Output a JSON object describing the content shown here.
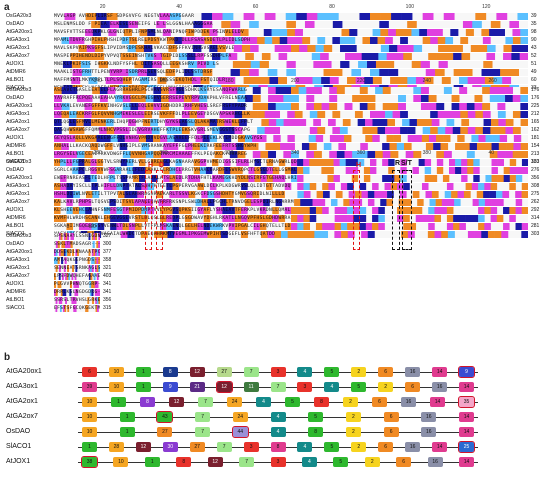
{
  "panel_a_label": "a",
  "panel_b_label": "b",
  "alignment": {
    "ruler_ticks": [
      [
        "20",
        "40",
        "60",
        "80",
        "100",
        "120"
      ],
      [
        "140",
        "160",
        "180",
        "200",
        "220",
        "240",
        "260"
      ],
      [
        "280",
        "300",
        "320",
        "340",
        "360",
        "380",
        "40"
      ],
      [
        "0",
        "420"
      ]
    ],
    "blocks": [
      {
        "names": [
          "OsGA20x3",
          "OsDAO",
          "AtGA20ox1",
          "AtGA3ox1",
          "AtGA2ox1",
          "AtGA2ox7",
          "AtJOX1",
          "AtDMR6",
          "AtLBO1",
          "SlACO1"
        ],
        "sequences": [
          "MVVLAGP AVHDIPLIRSF SDPGVVFG NEGTVLAAASPGGAAR",
          "MSLENMSLDD F PIEA ELKESLSENEIFG LE LSLGGNLHAAAGGGAA",
          "MAVSFVTTSEEEDKPKLGLGNIQTPLIFNPSMLNLQANIPNQFIWPDDEK PSINVLELDV",
          "MPAMLTDVFRGHPIHLPHSHIPDFTSLRELPDSYKWTPKD DLLFSASASDETLPLIDLSDPH",
          "MAVLSKPVAIPKSGFSLIPVIDMSDPESKHALVKACEDFGFFKVINHGVSAELVSVLE",
          "MASPEPPIHENDLDIPYVPVQTSSEINSHTVKS TGIPIDLSSSLLRPFSSDHPLFA",
          "MNEKLPKIFSIS IHGKKLNDFYSFHL DITSASQLLEEGKSHRV PIVD LS",
          "MAAKLISTGFRHTTLPENYVRP ISDRPRLSEVSQLEDFPLIDLSSTDRSF",
          "MAFFMSNTLMKYKPFLTLPLSQHEPTAGAMIRS DKESSEKQTHDL FSTQIDLR",
          "MENFPIINLEKLNGDERANTMEMIKDACENWGFFELVNHGIPHEVMDTVEK"
        ],
        "end_numbers": [
          "39",
          "35",
          "98",
          "90",
          "43",
          "52",
          "51",
          "49",
          "60",
          "33"
        ]
      },
      {
        "names": [
          "OsGA20x3",
          "OsDAO",
          "AtGA20ox1",
          "AtGA3ox1",
          "AtGA2ox1",
          "AtGA2ox7",
          "AtJOX1",
          "AtDMR6",
          "AtLBO1",
          "SlACO1"
        ],
        "sequences": [
          "ASLAVCTGASLEEATELFLAGRRAGHRLPSCHRVSVRSFVGLSDHKLKSRYESANQFWARLG",
          "YAVRAFFRCPQEAAAEAHAAYRKVGGCLPWEGHVGERRSEPEVYRPVDAKPHLVFRELNEAA",
          "LLVKALEVANEFGFFKVINHGVSLELLEQLEHVVIGDHDDRIRHFVHESLSREFRSFYPADR",
          "LQEQALEACKRFGLFQVVNHGMEKESLELEIRSEVKFFFDLPLEEVGEYDSGVAPSKRHGLLK",
          "QTLQGLESFMVLLMENKERLIHQPQGWPFNERTDHYGYKSEAGSLQLAKAMATRSWEKLLFPLT",
          "QASQHWSAWGFFQMMLNHCVPSSLIDEVGRVAHEFFKTPLEEKSKVGRLSMEVGGSTSSCAPG",
          "GEYQSLAQLLVKGAAEEWGFFQLVNHGVPNDVVDGVLASAHEEFFDLPEEEKLKYEMDDGKAVGYGS",
          "ANHALLLKACKQAQDWGFFLVNHGIPLEVMSRANKAYEFFFGLPHEEKIRKFEEFRTSSHGYWPH",
          "LRGYSELVGECEAIYRKVDWGFFLQVVNHGAPQQIMRCMIAAAEFFKLPEQAKCKYDHAREG",
          "VRSKGAMYKLCAEEVEQAAEQYFEFEDRDAKELCMVQAQTTLSGNEYSSLEHCFEPNMSVRG"
        ],
        "end_numbers": [
          "176",
          "176",
          "225",
          "212",
          "165",
          "162",
          "181",
          "154",
          "213",
          "133"
        ]
      },
      {
        "names": [
          "OsGA20x3",
          "OsDAO",
          "AtGA20ox1",
          "AtGA3ox1",
          "AtGA2ox1",
          "AtGA2ox7",
          "AtJOX1",
          "AtDMR6",
          "AtLBO1",
          "SlACO1"
        ],
        "sequences": [
          "YHPLLLFGPRALGLGGTVLSRWYAERLVLLGRREHGLKAGNAARAVGGPVHMEDIGSSIFLRLHYGCTLRNAGWRLQD",
          "SGRLCAAAPCLRGGVVWFSGARAALLFEDIAAKLGLRDHCLRRGTVHAACGARDFESWVRQPCTLGSGQTELLGSMAL",
          "EWEFRNREASFLTEDLHFPLTSSPAMRTFLAHALATSLAEDLRTDHAFHTLKAMEGKHDYDLNSIRFGTGEHAQLHRI",
          "ASHADAYISCLLTPLHIFLLDNPTATALSAHTHTEETLPGPERVGAAWLDCLKPLKDGWRVSLQLIDTGTTADVDQ",
          "HSHLDQIWLNVLETILTTPVTALGLAHWRDGHRAEKARLTSSVLKGKCFDSGSHDHTYGMVGSQRIDLNILLLD",
          "KALKAVLRPHPSLTQSVEPSDITSVLAPAKEQAVPRFRKSNPLSWLDHALLPGCHLTRNVDGELESPDIRLNGARRM",
          "KLSHEEVEHCLAHNFSNMFESGTPMIDPDRPTVVLYPGVSQPKSIIGYAFLYSHAEAVTFERKPLVKRDNLLQMAL",
          "KVMFHLWRDHSCANKLEHGEVGGEVRSTLDLQSLELREDPLGSGDWAVYDGHLRKATLLNGQVPFHSLGDHDWRRA",
          "SGKAAIIMGQESDSSYVENWLTDLSNPLLVTFPLMSKAENQLGELHELNDEKWRKVPVIPGALCILGHQTELLTLD",
          "WASYLQGEKNRLAEEVASAIALWKDCTDPAEQAHRKMTVEGMLIPKGEMWPIHTSDGEFLVSFHFTQATDD"
        ],
        "end_numbers": [
          "303",
          "276",
          "356",
          "308",
          "275",
          "262",
          "292",
          "314",
          "281",
          "303"
        ]
      },
      {
        "names": [
          "OsGA20x3",
          "OsDAO",
          "AtGA20ox1",
          "AtGA3ox1",
          "AtGA2ox1",
          "AtGA2ox7",
          "AtJOX1",
          "AtDMR6",
          "AtLBO1",
          "SlACO1"
        ],
        "sequences": [
          "SPSNAAYLSSNLGDN----- RGASFPK",
          "SSKLTMADSAGR----- EARALAS",
          "DDSEKDLKNAAATPC----- LGHVPLT",
          "AMTAQKGEPNGDS----- MHKVPEK",
          "SENNEATSRNKAGLS----- MDHKPDN",
          "LPSFDWQHEFAGAAE----- SAPKSPAS",
          "PLGVVPHNQTGGRP----- NGRQSE",
          "DRRLKSLNGDGDRG----- ZTANNCW",
          "SSRSLTRVHSLGRKE----- CPERIEEP",
          "EFSTSFGCQKGEKTM----- PERLIADGSS"
        ],
        "end_numbers": [
          "327",
          "300",
          "377",
          "358",
          "321",
          "403",
          "341",
          "341",
          "356",
          "315"
        ]
      }
    ],
    "motif_labels": [
      {
        "text": "H",
        "color": "#d11"
      },
      {
        "text": "D",
        "color": "#d11"
      },
      {
        "text": "H",
        "color": "#d11"
      },
      {
        "text": "R",
        "color": "#111"
      },
      {
        "text": "S/T",
        "color": "#111"
      }
    ]
  },
  "motifs": {
    "genes": [
      {
        "name": "AtGA20ox1",
        "boxes": [
          {
            "n": "6",
            "c": "#e8322b"
          },
          {
            "n": "10",
            "c": "#f5a623"
          },
          {
            "n": "1",
            "c": "#2eb82e"
          },
          {
            "n": "8",
            "c": "#1a3a8f"
          },
          {
            "n": "12",
            "c": "#7a1f2e"
          },
          {
            "n": "27",
            "c": "#b6d98c"
          },
          {
            "n": "7",
            "c": "#9be58a"
          },
          {
            "n": "3",
            "c": "#e8322b"
          },
          {
            "n": "4",
            "c": "#138a8a"
          },
          {
            "n": "5",
            "c": "#2eb82e"
          },
          {
            "n": "2",
            "c": "#f6d31f"
          },
          {
            "n": "6",
            "c": "#f08a24"
          },
          {
            "n": "16",
            "c": "#8a8fa8"
          },
          {
            "n": "14",
            "c": "#e03b8f"
          },
          {
            "n": "9",
            "c": "#3b4bd1",
            "hl": true
          }
        ]
      },
      {
        "name": "AtGA3ox1",
        "boxes": [
          {
            "n": "39",
            "c": "#e03b8f"
          },
          {
            "n": "10",
            "c": "#f5a623"
          },
          {
            "n": "1",
            "c": "#2eb82e"
          },
          {
            "n": "9",
            "c": "#3b4bd1"
          },
          {
            "n": "21",
            "c": "#5b2a86"
          },
          {
            "n": "12",
            "c": "#7a1f2e",
            "hl": true
          },
          {
            "n": "11",
            "c": "#3e7a3e"
          },
          {
            "n": "7",
            "c": "#9be58a"
          },
          {
            "n": "3",
            "c": "#e8322b"
          },
          {
            "n": "4",
            "c": "#138a8a"
          },
          {
            "n": "5",
            "c": "#2eb82e"
          },
          {
            "n": "2",
            "c": "#f6d31f"
          },
          {
            "n": "6",
            "c": "#f08a24"
          },
          {
            "n": "16",
            "c": "#8a8fa8"
          },
          {
            "n": "14",
            "c": "#e03b8f"
          }
        ]
      },
      {
        "name": "AtGA2ox1",
        "boxes": [
          {
            "n": "10",
            "c": "#f5a623"
          },
          {
            "n": "1",
            "c": "#2eb82e"
          },
          {
            "n": "8",
            "c": "#8a3bd1"
          },
          {
            "n": "12",
            "c": "#7a1f2e"
          },
          {
            "n": "7",
            "c": "#9be58a"
          },
          {
            "n": "24",
            "c": "#f5a623"
          },
          {
            "n": "4",
            "c": "#138a8a"
          },
          {
            "n": "5",
            "c": "#2eb82e"
          },
          {
            "n": "8",
            "c": "#e8322b"
          },
          {
            "n": "2",
            "c": "#f6d31f"
          },
          {
            "n": "6",
            "c": "#f08a24"
          },
          {
            "n": "16",
            "c": "#8a8fa8"
          },
          {
            "n": "14",
            "c": "#e03b8f"
          },
          {
            "n": "35",
            "c": "#f4a6c8",
            "hl": true
          }
        ]
      },
      {
        "name": "AtGA2ox7",
        "boxes": [
          {
            "n": "10",
            "c": "#f5a623"
          },
          {
            "n": "1",
            "c": "#2eb82e"
          },
          {
            "n": "43",
            "c": "#2eb82e",
            "hl": true
          },
          {
            "n": "7",
            "c": "#9be58a"
          },
          {
            "n": "24",
            "c": "#f5a623"
          },
          {
            "n": "4",
            "c": "#138a8a"
          },
          {
            "n": "5",
            "c": "#2eb82e"
          },
          {
            "n": "2",
            "c": "#f6d31f"
          },
          {
            "n": "6",
            "c": "#f08a24"
          },
          {
            "n": "16",
            "c": "#8a8fa8"
          },
          {
            "n": "14",
            "c": "#e03b8f"
          }
        ]
      },
      {
        "name": "OsDAO",
        "boxes": [
          {
            "n": "10",
            "c": "#f5a623"
          },
          {
            "n": "1",
            "c": "#2eb82e"
          },
          {
            "n": "27",
            "c": "#f08a24"
          },
          {
            "n": "7",
            "c": "#9be58a"
          },
          {
            "n": "44",
            "c": "#9a8fd8",
            "hl": true
          },
          {
            "n": "4",
            "c": "#138a8a"
          },
          {
            "n": "8",
            "c": "#2eb82e"
          },
          {
            "n": "2",
            "c": "#f6d31f"
          },
          {
            "n": "6",
            "c": "#f08a24"
          },
          {
            "n": "16",
            "c": "#8a8fa8"
          },
          {
            "n": "14",
            "c": "#e03b8f"
          }
        ]
      },
      {
        "name": "SlACO1",
        "boxes": [
          {
            "n": "1",
            "c": "#2eb82e"
          },
          {
            "n": "28",
            "c": "#f5a623"
          },
          {
            "n": "12",
            "c": "#7a1f2e"
          },
          {
            "n": "30",
            "c": "#8a3bd1"
          },
          {
            "n": "27",
            "c": "#f08a24"
          },
          {
            "n": "7",
            "c": "#9be58a"
          },
          {
            "n": "3",
            "c": "#e8322b"
          },
          {
            "n": "8",
            "c": "#e03b8f"
          },
          {
            "n": "4",
            "c": "#138a8a"
          },
          {
            "n": "5",
            "c": "#2eb82e"
          },
          {
            "n": "2",
            "c": "#f6d31f"
          },
          {
            "n": "6",
            "c": "#f08a24"
          },
          {
            "n": "16",
            "c": "#8a8fa8"
          },
          {
            "n": "14",
            "c": "#e03b8f"
          },
          {
            "n": "25",
            "c": "#2a6ad1",
            "hl": true
          }
        ]
      },
      {
        "name": "AtJOX1",
        "boxes": [
          {
            "n": "38",
            "c": "#2eb82e",
            "hl": true
          },
          {
            "n": "10",
            "c": "#f5a623"
          },
          {
            "n": "1",
            "c": "#2eb82e"
          },
          {
            "n": "8",
            "c": "#e8322b"
          },
          {
            "n": "12",
            "c": "#7a1f2e"
          },
          {
            "n": "7",
            "c": "#9be58a"
          },
          {
            "n": "3",
            "c": "#e8322b"
          },
          {
            "n": "4",
            "c": "#138a8a"
          },
          {
            "n": "5",
            "c": "#2eb82e"
          },
          {
            "n": "2",
            "c": "#f6d31f"
          },
          {
            "n": "6",
            "c": "#f08a24"
          },
          {
            "n": "16",
            "c": "#8a8fa8"
          },
          {
            "n": "14",
            "c": "#e03b8f"
          }
        ]
      }
    ]
  },
  "colors": {
    "identical": "#1a1aa8",
    "high": "#e040e0",
    "medium": "#f08a24",
    "low": "#5bc0ff",
    "highlight_box": "#d1142b"
  }
}
